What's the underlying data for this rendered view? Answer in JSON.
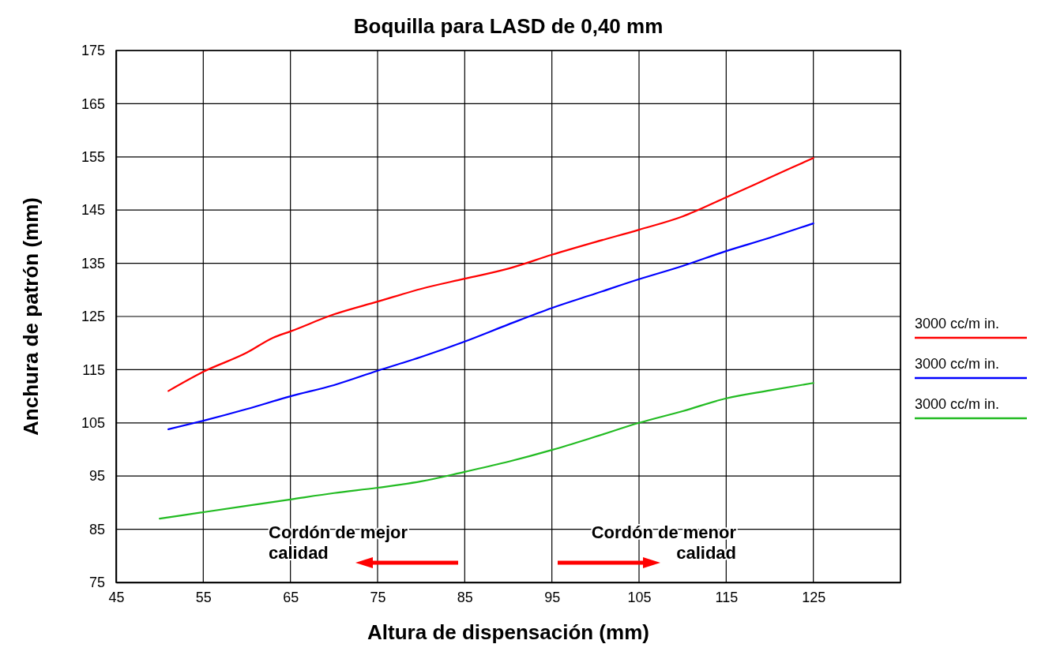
{
  "chart_data": {
    "type": "line",
    "title": "Boquilla para LASD de 0,40 mm",
    "xlabel": "Altura de dispensación (mm)",
    "ylabel": "Anchura de patrón (mm)",
    "xlim": [
      45,
      135
    ],
    "xticks": [
      45,
      55,
      65,
      75,
      85,
      95,
      105,
      115,
      125,
      {
        "value": 135,
        "label": null
      }
    ],
    "ylim": [
      75,
      175
    ],
    "yticks": [
      75,
      85,
      95,
      105,
      115,
      125,
      135,
      145,
      155,
      165,
      175
    ],
    "grid": true,
    "legend": "right",
    "marker": "none",
    "line_style": "solid",
    "annotations": [
      "Cordón de mejor calidad",
      "Cordón de menor calidad"
    ],
    "series": [
      {
        "name": "3000 cc/m in.",
        "color": "#ff0000",
        "x": [
          51,
          55,
          60,
          63,
          65,
          70,
          75,
          80,
          85,
          90,
          95,
          100,
          105,
          110,
          115,
          120,
          125
        ],
        "values": [
          111,
          114.6,
          118.2,
          121,
          122.2,
          125.4,
          127.8,
          130.2,
          132.1,
          134,
          136.6,
          139,
          141.3,
          143.8,
          147.4,
          151.1,
          154.8
        ]
      },
      {
        "name": "3000 cc/m in.",
        "color": "#0000ff",
        "x": [
          51,
          55,
          60,
          65,
          70,
          75,
          80,
          85,
          90,
          95,
          100,
          105,
          110,
          115,
          120,
          125
        ],
        "values": [
          103.8,
          105.4,
          107.6,
          110,
          112.1,
          114.8,
          117.4,
          120.3,
          123.5,
          126.6,
          129.3,
          132,
          134.5,
          137.3,
          139.8,
          142.5
        ]
      },
      {
        "name": "3000 cc/m in.",
        "color": "#22bb22",
        "x": [
          50,
          55,
          60,
          65,
          70,
          75,
          80,
          85,
          90,
          95,
          100,
          105,
          110,
          115,
          120,
          125
        ],
        "values": [
          87,
          88.2,
          89.4,
          90.6,
          91.8,
          92.8,
          94,
          95.8,
          97.7,
          99.9,
          102.4,
          105,
          107.2,
          109.6,
          111.1,
          112.5
        ]
      }
    ]
  }
}
